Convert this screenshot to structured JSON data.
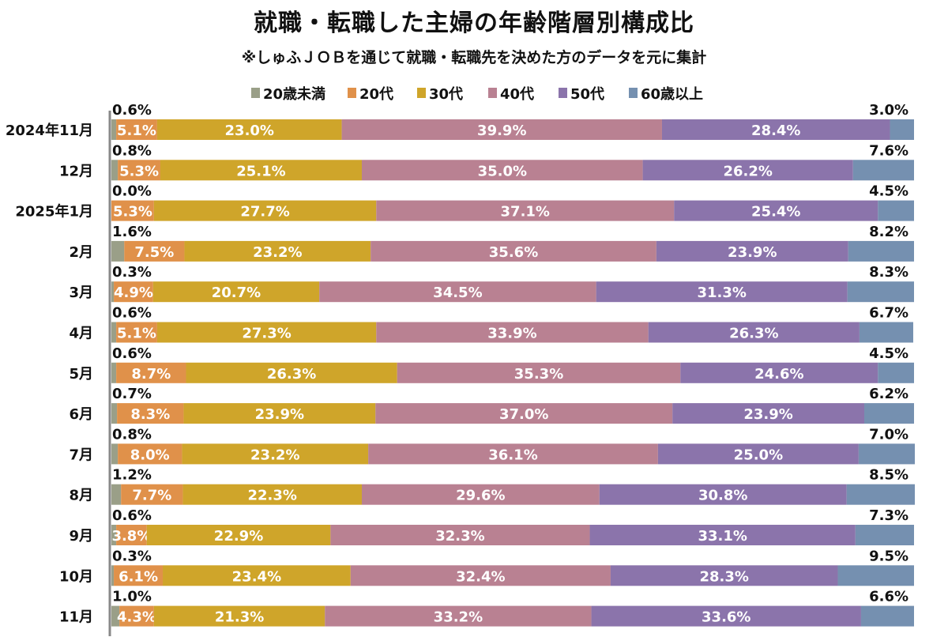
{
  "chart_data": {
    "type": "bar",
    "orientation": "horizontal",
    "stacked": true,
    "percent": true,
    "title": "就職・転職した主婦の年齢階層別構成比",
    "subtitle": "※しゅふＪＯＢを通じて就職・転職先を決めた方のデータを元に集計",
    "legend_position": "top",
    "grid": false,
    "xlim": [
      0,
      100
    ],
    "categories": [
      "2024年11月",
      "12月",
      "2025年1月",
      "2月",
      "3月",
      "4月",
      "5月",
      "6月",
      "7月",
      "8月",
      "9月",
      "10月",
      "11月"
    ],
    "series": [
      {
        "name": "20歳未満",
        "color": "#9a9f88",
        "values": [
          0.6,
          0.8,
          0.0,
          1.6,
          0.3,
          0.6,
          0.6,
          0.7,
          0.8,
          1.2,
          0.6,
          0.3,
          1.0
        ]
      },
      {
        "name": "20代",
        "color": "#e0914a",
        "values": [
          5.1,
          5.3,
          5.3,
          7.5,
          4.9,
          5.1,
          8.7,
          8.3,
          8.0,
          7.7,
          3.8,
          6.1,
          4.3
        ]
      },
      {
        "name": "30代",
        "color": "#cfa52a",
        "values": [
          23.0,
          25.1,
          27.7,
          23.2,
          20.7,
          27.3,
          26.3,
          23.9,
          23.2,
          22.3,
          22.9,
          23.4,
          21.3
        ]
      },
      {
        "name": "40代",
        "color": "#b98192",
        "values": [
          39.9,
          35.0,
          37.1,
          35.6,
          34.5,
          33.9,
          35.3,
          37.0,
          36.1,
          29.6,
          32.3,
          32.4,
          33.2
        ]
      },
      {
        "name": "50代",
        "color": "#8b74ab",
        "values": [
          28.4,
          26.2,
          25.4,
          23.9,
          31.3,
          26.3,
          24.6,
          23.9,
          25.0,
          30.8,
          33.1,
          28.3,
          33.6
        ]
      },
      {
        "name": "60歳以上",
        "color": "#7590b0",
        "values": [
          3.0,
          7.6,
          4.5,
          8.2,
          8.3,
          6.7,
          4.5,
          6.2,
          7.0,
          8.5,
          7.3,
          9.5,
          6.6
        ]
      }
    ]
  }
}
